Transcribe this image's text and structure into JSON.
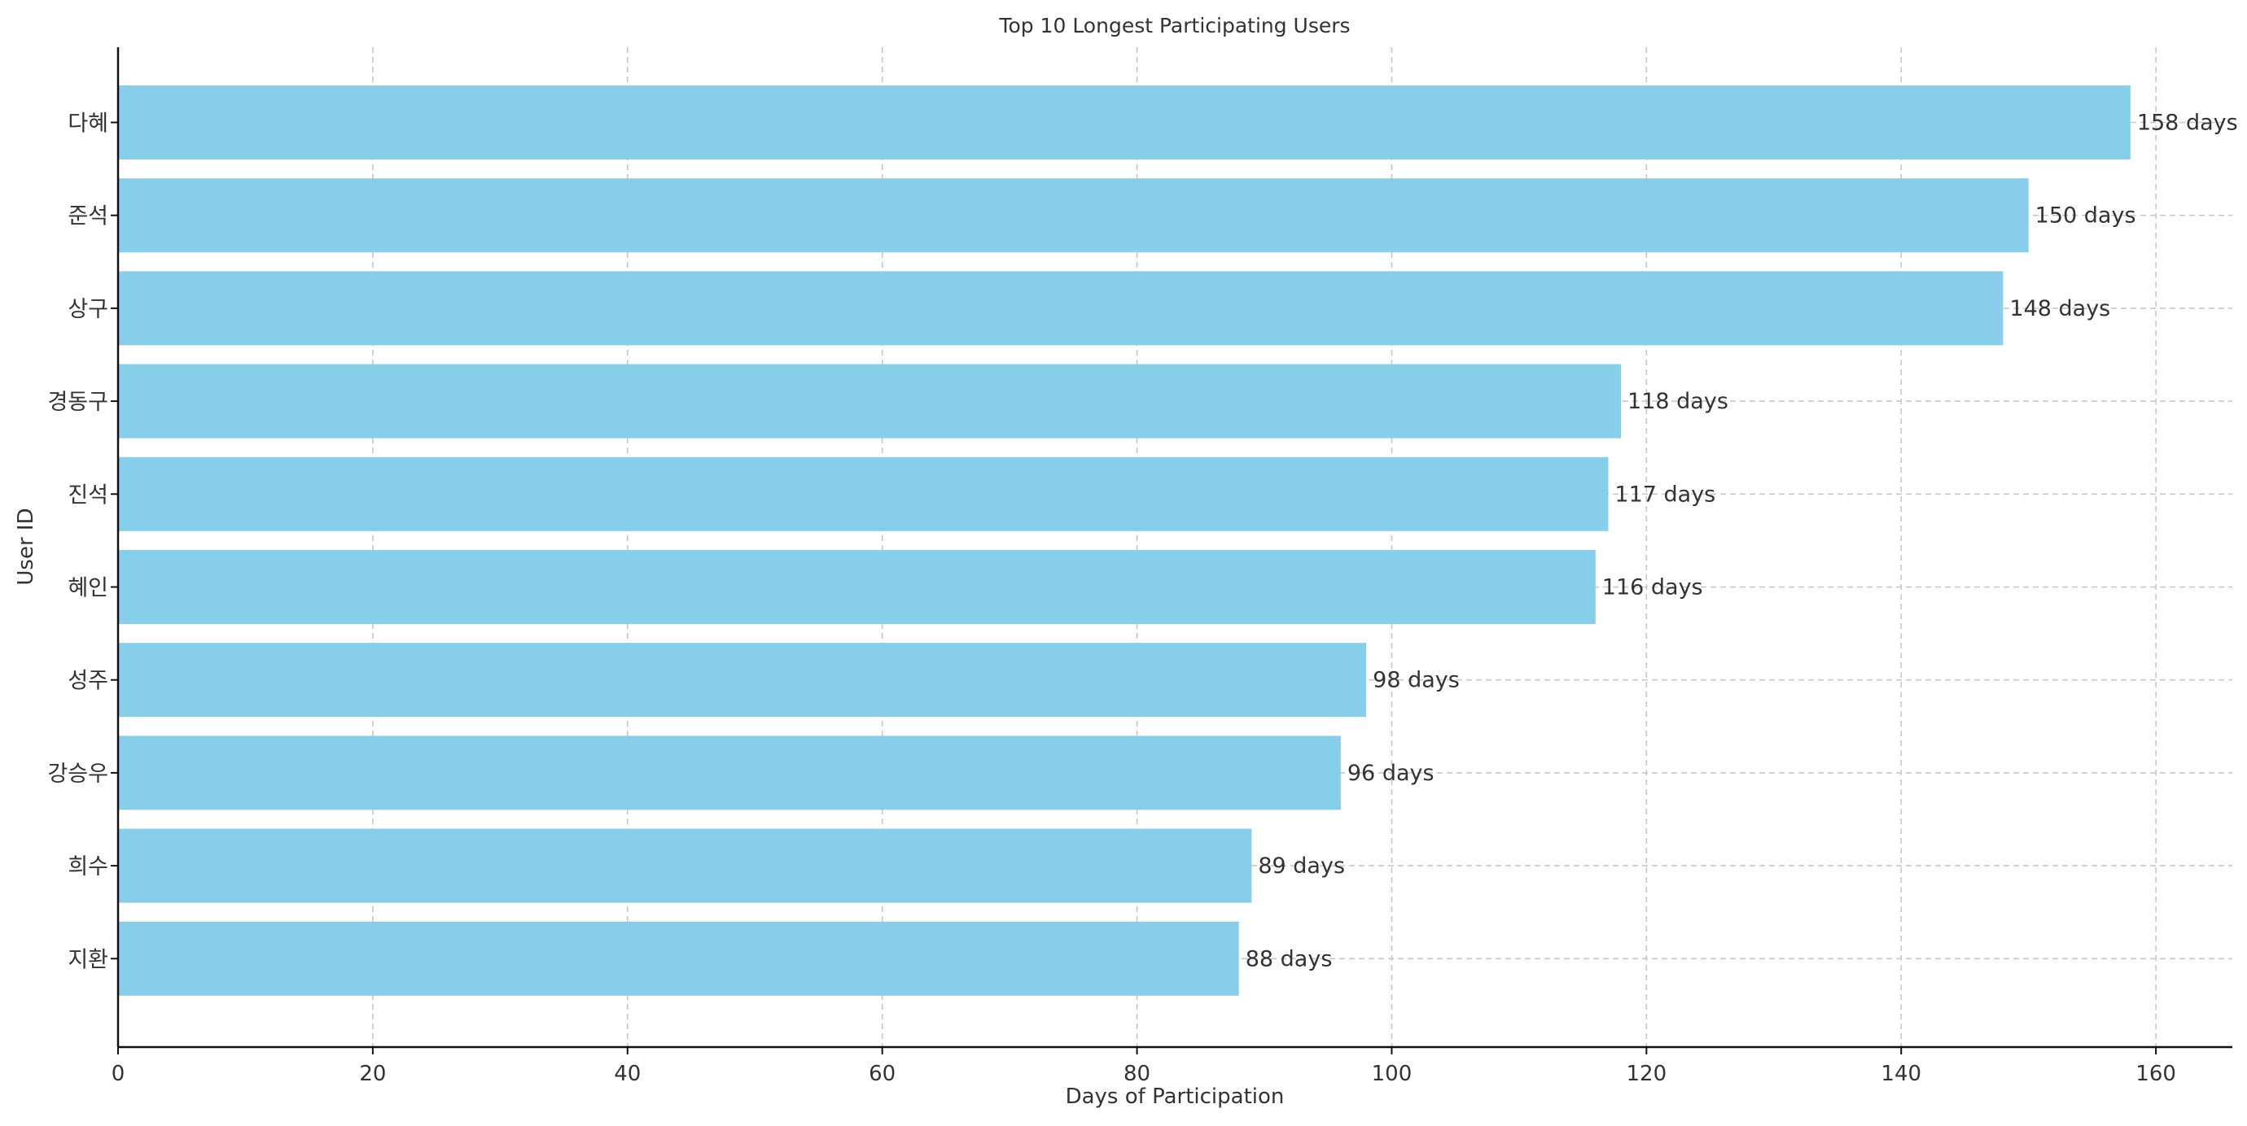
{
  "chart_data": {
    "type": "bar",
    "orientation": "horizontal",
    "title": "Top 10 Longest Participating Users",
    "xlabel": "Days of Participation",
    "ylabel": "User ID",
    "categories": [
      "다혜",
      "준석",
      "상구",
      "경동구",
      "진석",
      "혜인",
      "성주",
      "강승우",
      "희수",
      "지환"
    ],
    "values": [
      158,
      150,
      148,
      118,
      117,
      116,
      98,
      96,
      89,
      88
    ],
    "data_labels": [
      "158 days",
      "150 days",
      "148 days",
      "118 days",
      "117 days",
      "116 days",
      "98 days",
      "96 days",
      "89 days",
      "88 days"
    ],
    "x_ticks": [
      "0",
      "20",
      "40",
      "60",
      "80",
      "100",
      "120",
      "140",
      "160"
    ],
    "xlim": [
      0,
      166
    ],
    "grid": true,
    "bar_color": "#87ceeb"
  }
}
